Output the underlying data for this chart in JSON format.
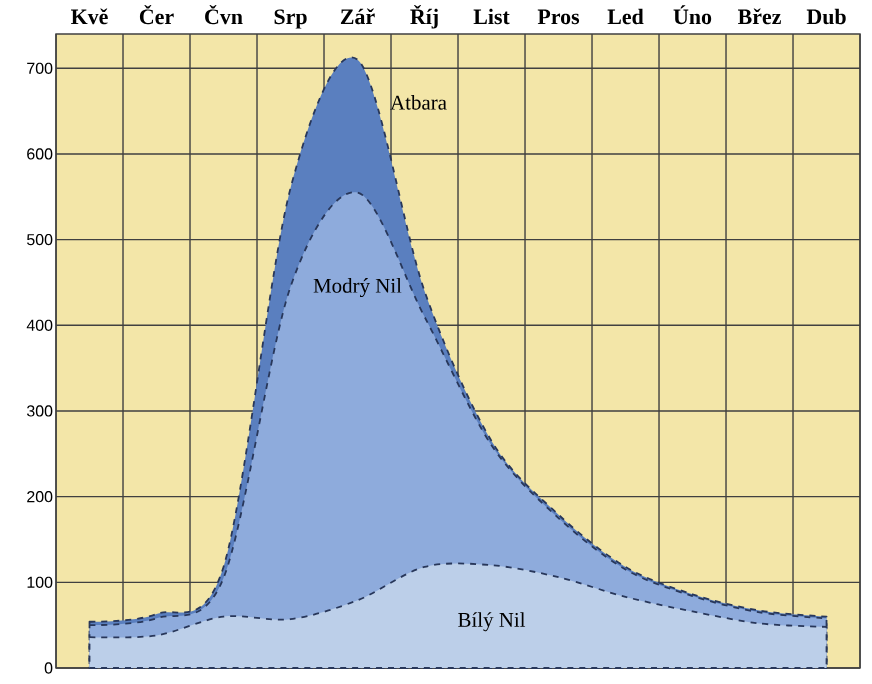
{
  "chart_data": {
    "type": "area",
    "categories": [
      "Kvě",
      "Čer",
      "Čvn",
      "Srp",
      "Zář",
      "Říj",
      "List",
      "Pros",
      "Led",
      "Úno",
      "Břez",
      "Dub"
    ],
    "series": [
      {
        "name": "Bílý Nil",
        "color": "#bccfe9",
        "values": [
          36,
          38,
          60,
          57,
          79,
          118,
          120,
          106,
          83,
          66,
          52,
          48
        ]
      },
      {
        "name": "Modrý Nil",
        "color": "#8eabdc",
        "values": [
          50,
          58,
          105,
          445,
          555,
          410,
          260,
          175,
          115,
          84,
          65,
          58
        ]
      },
      {
        "name": "Atbara",
        "color": "#5a7fbf",
        "values": [
          54,
          63,
          118,
          560,
          710,
          440,
          265,
          179,
          118,
          86,
          67,
          60
        ]
      }
    ],
    "ylim": [
      0,
      740
    ],
    "yticks": [
      0,
      100,
      200,
      300,
      400,
      500,
      600,
      700
    ],
    "grid": true,
    "line_style": "dashed",
    "marker": "none"
  }
}
